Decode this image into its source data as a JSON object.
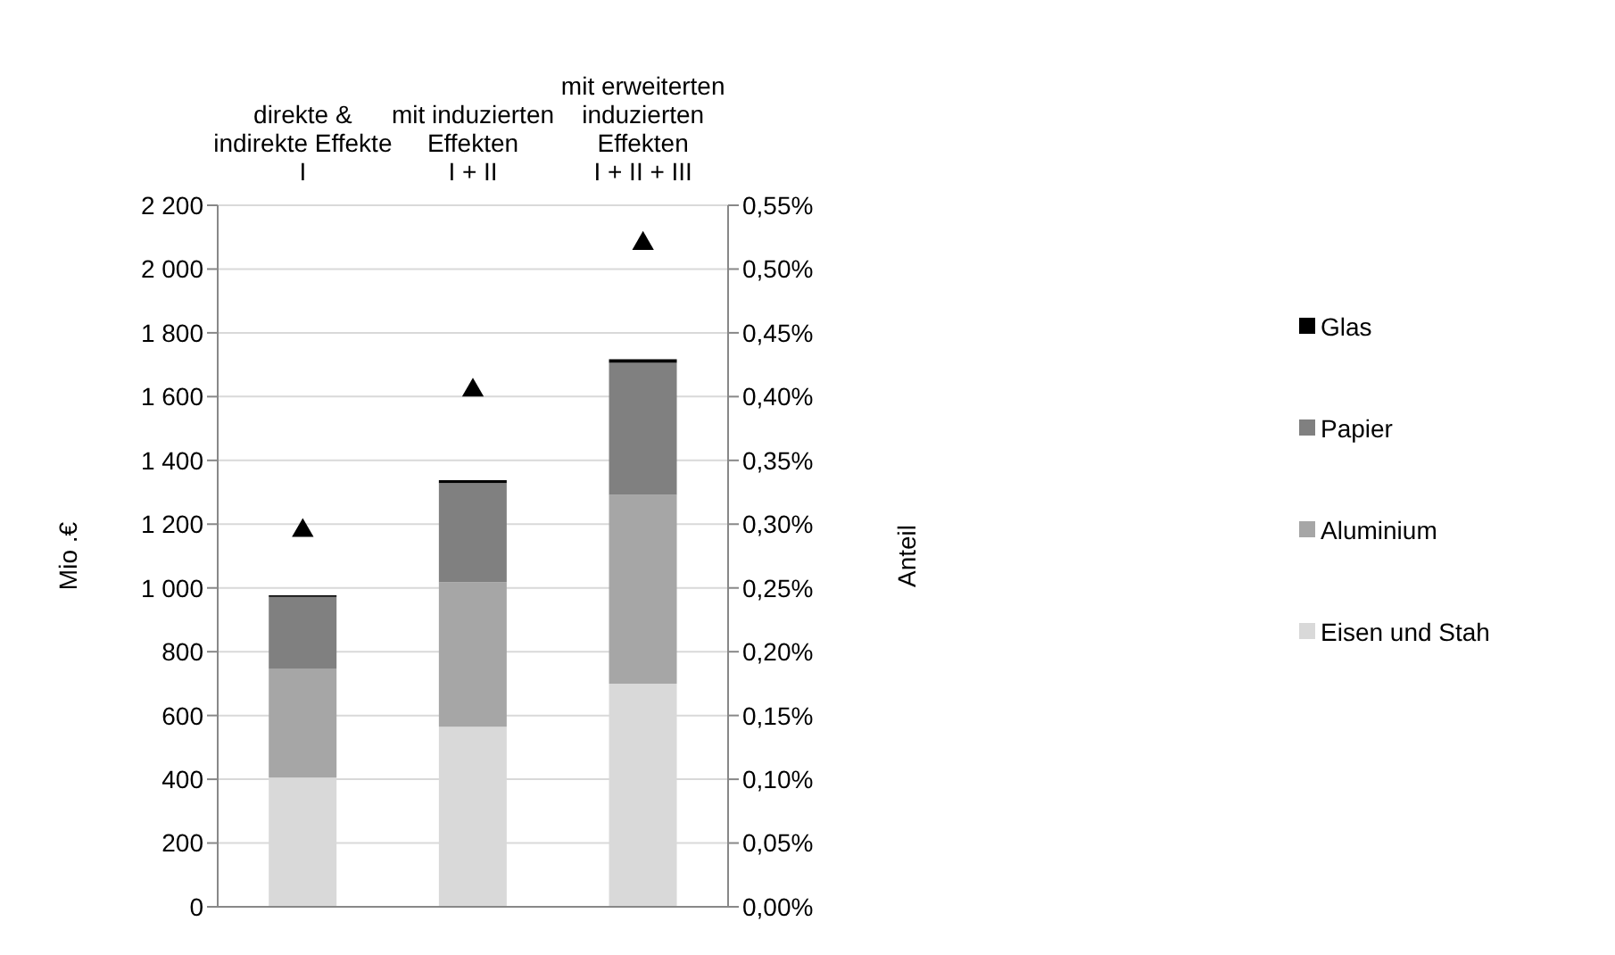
{
  "chart_data": {
    "type": "bar",
    "stacked": true,
    "categories": [
      "direkte &\nindirekte Effekte\nI",
      "mit induzierten\nEffekten\nI + II",
      "mit erweiterten\ninduzierten\nEffekten\nI + II + III"
    ],
    "ylabel": "Mio .€",
    "y2label": "Anteil",
    "ylim": [
      0,
      2200
    ],
    "yticks": [
      0,
      200,
      400,
      600,
      800,
      {
        "value": 1000,
        "label": "1 000"
      },
      {
        "value": 1200,
        "label": "1 200"
      },
      {
        "value": 1400,
        "label": "1 400"
      },
      {
        "value": 1600,
        "label": "1 600"
      },
      {
        "value": 1800,
        "label": "1 800"
      },
      {
        "value": 2000,
        "label": "2 000"
      },
      {
        "value": 2200,
        "label": "2 200"
      }
    ],
    "y2lim": [
      0,
      0.55
    ],
    "y2ticks": [
      {
        "value": 0,
        "label": "0,00%"
      },
      {
        "value": 0.05,
        "label": "0,05%"
      },
      {
        "value": 0.1,
        "label": "0,10%"
      },
      {
        "value": 0.15,
        "label": "0,15%"
      },
      {
        "value": 0.2,
        "label": "0,20%"
      },
      {
        "value": 0.25,
        "label": "0,25%"
      },
      {
        "value": 0.3,
        "label": "0,30%"
      },
      {
        "value": 0.35,
        "label": "0,35%"
      },
      {
        "value": 0.4,
        "label": "0,40%"
      },
      {
        "value": 0.45,
        "label": "0,45%"
      },
      {
        "value": 0.5,
        "label": "0,50%"
      },
      {
        "value": 0.55,
        "label": "0,55%"
      }
    ],
    "grid": "y",
    "legend": "right",
    "series": [
      {
        "name": "Eisen und Stah",
        "color": "#d9d9d9",
        "values": [
          405,
          565,
          700
        ]
      },
      {
        "name": "Aluminium",
        "color": "#a6a6a6",
        "values": [
          342,
          453,
          592
        ]
      },
      {
        "name": "Papier",
        "color": "#808080",
        "values": [
          225,
          311,
          414
        ]
      },
      {
        "name": "Glas",
        "color": "#000000",
        "values": [
          5,
          9,
          11
        ]
      },
      {
        "type": "scatter",
        "axis": "y2",
        "marker": "triangle",
        "color": "#000000",
        "values": [
          0.295,
          0.405,
          0.52
        ]
      }
    ]
  }
}
